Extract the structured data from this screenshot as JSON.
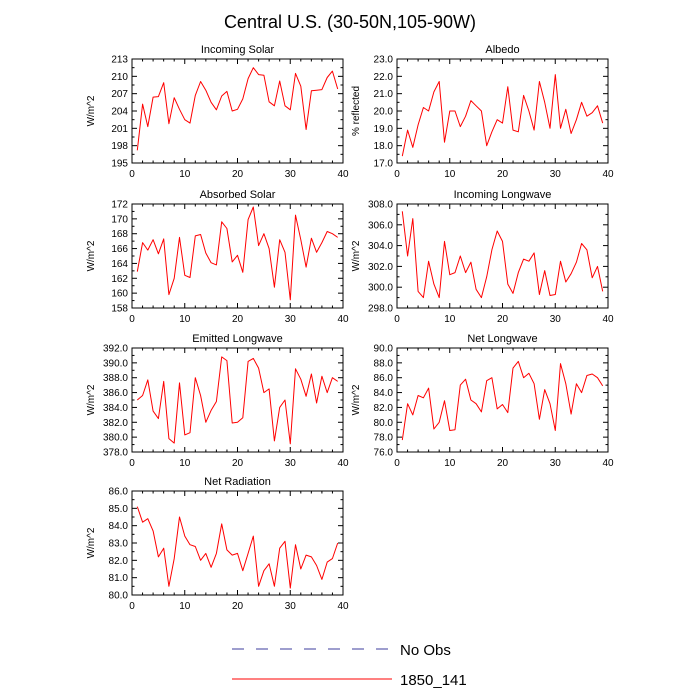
{
  "figure": {
    "title": "Central U.S. (30-50N,105-90W)"
  },
  "legend": [
    {
      "label": "No Obs",
      "color": "#3c3c9c",
      "dash": "dashed"
    },
    {
      "label": "1850_141",
      "color": "#ff0000",
      "dash": "solid"
    }
  ],
  "chart_data": [
    {
      "type": "line",
      "title": "Incoming Solar",
      "ylabel": "W/m^2",
      "xlim": [
        0,
        40
      ],
      "ylim": [
        195,
        213
      ],
      "xticks": [
        0,
        10,
        20,
        30,
        40
      ],
      "yticks": [
        195,
        198,
        201,
        204,
        207,
        210,
        213
      ],
      "ytick_labels": [
        "195",
        "198",
        "201",
        "204",
        "207",
        "210",
        "213"
      ],
      "series": [
        {
          "name": "1850_141",
          "color": "#ff0000",
          "x": [
            1,
            2,
            3,
            4,
            5,
            6,
            7,
            8,
            9,
            10,
            11,
            12,
            13,
            14,
            15,
            16,
            17,
            18,
            19,
            20,
            21,
            22,
            23,
            24,
            25,
            26,
            27,
            28,
            29,
            30,
            31,
            32,
            33,
            34,
            35,
            36,
            37,
            38,
            39
          ],
          "values": [
            197.2,
            205.2,
            201.3,
            206.4,
            206.5,
            208.9,
            201.8,
            206.3,
            204.3,
            202.5,
            201.9,
            206.7,
            209.1,
            207.6,
            205.5,
            204.2,
            206.6,
            207.4,
            204.0,
            204.3,
            206.1,
            209.6,
            211.5,
            210.3,
            210.2,
            205.6,
            204.9,
            209.2,
            204.9,
            204.2,
            210.5,
            208.3,
            200.8,
            207.5,
            207.6,
            207.7,
            209.8,
            210.9,
            207.8
          ]
        }
      ]
    },
    {
      "type": "line",
      "title": "Albedo",
      "ylabel": "% reflected",
      "xlim": [
        0,
        40
      ],
      "ylim": [
        17,
        23
      ],
      "xticks": [
        0,
        10,
        20,
        30,
        40
      ],
      "yticks": [
        17,
        18,
        19,
        20,
        21,
        22,
        23
      ],
      "ytick_labels": [
        "17.0",
        "18.0",
        "19.0",
        "20.0",
        "21.0",
        "22.0",
        "23.0"
      ],
      "series": [
        {
          "name": "1850_141",
          "color": "#ff0000",
          "x": [
            1,
            2,
            3,
            4,
            5,
            6,
            7,
            8,
            9,
            10,
            11,
            12,
            13,
            14,
            15,
            16,
            17,
            18,
            19,
            20,
            21,
            22,
            23,
            24,
            25,
            26,
            27,
            28,
            29,
            30,
            31,
            32,
            33,
            34,
            35,
            36,
            37,
            38,
            39
          ],
          "values": [
            17.4,
            18.9,
            17.9,
            19.2,
            20.2,
            20.0,
            21.1,
            21.7,
            18.2,
            20.0,
            20.0,
            19.1,
            19.7,
            20.6,
            20.3,
            20.0,
            18.0,
            18.8,
            19.5,
            19.3,
            21.4,
            18.9,
            18.8,
            20.9,
            20.0,
            18.9,
            21.7,
            20.5,
            19.0,
            22.1,
            19.0,
            20.1,
            18.7,
            19.5,
            20.5,
            19.7,
            19.9,
            20.3,
            19.3
          ]
        }
      ]
    },
    {
      "type": "line",
      "title": "Absorbed Solar",
      "ylabel": "W/m^2",
      "xlim": [
        0,
        40
      ],
      "ylim": [
        158,
        172
      ],
      "xticks": [
        0,
        10,
        20,
        30,
        40
      ],
      "yticks": [
        158,
        160,
        162,
        164,
        166,
        168,
        170,
        172
      ],
      "ytick_labels": [
        "158",
        "160",
        "162",
        "164",
        "166",
        "168",
        "170",
        "172"
      ],
      "series": [
        {
          "name": "1850_141",
          "color": "#ff0000",
          "x": [
            1,
            2,
            3,
            4,
            5,
            6,
            7,
            8,
            9,
            10,
            11,
            12,
            13,
            14,
            15,
            16,
            17,
            18,
            19,
            20,
            21,
            22,
            23,
            24,
            25,
            26,
            27,
            28,
            29,
            30,
            31,
            32,
            33,
            34,
            35,
            36,
            37,
            38,
            39
          ],
          "values": [
            162.9,
            166.8,
            165.8,
            167.2,
            165.3,
            167.3,
            159.8,
            162.0,
            167.5,
            162.4,
            162.1,
            167.7,
            167.9,
            165.4,
            164.1,
            163.8,
            169.6,
            168.7,
            164.2,
            165.1,
            162.8,
            169.9,
            171.6,
            166.4,
            168.0,
            166.0,
            160.8,
            167.2,
            165.5,
            159.1,
            170.5,
            167.2,
            163.5,
            167.4,
            165.5,
            166.8,
            168.3,
            168.0,
            167.5
          ]
        }
      ]
    },
    {
      "type": "line",
      "title": "Incoming Longwave",
      "ylabel": "W/m^2",
      "xlim": [
        0,
        40
      ],
      "ylim": [
        298,
        308
      ],
      "xticks": [
        0,
        10,
        20,
        30,
        40
      ],
      "yticks": [
        298,
        300,
        302,
        304,
        306,
        308
      ],
      "ytick_labels": [
        "298.0",
        "300.0",
        "302.0",
        "304.0",
        "306.0",
        "308.0"
      ],
      "series": [
        {
          "name": "1850_141",
          "color": "#ff0000",
          "x": [
            1,
            2,
            3,
            4,
            5,
            6,
            7,
            8,
            9,
            10,
            11,
            12,
            13,
            14,
            15,
            16,
            17,
            18,
            19,
            20,
            21,
            22,
            23,
            24,
            25,
            26,
            27,
            28,
            29,
            30,
            31,
            32,
            33,
            34,
            35,
            36,
            37,
            38,
            39
          ],
          "values": [
            307.3,
            303.0,
            306.6,
            299.6,
            299.0,
            302.5,
            300.3,
            299.0,
            304.4,
            301.2,
            301.4,
            303.0,
            301.4,
            302.4,
            299.8,
            299.0,
            301.0,
            303.6,
            305.4,
            304.4,
            300.3,
            299.4,
            301.4,
            302.7,
            302.5,
            303.3,
            299.3,
            301.6,
            299.2,
            299.3,
            302.5,
            300.5,
            301.3,
            302.4,
            304.2,
            303.6,
            300.9,
            302.0,
            299.6
          ]
        }
      ]
    },
    {
      "type": "line",
      "title": "Emitted Longwave",
      "ylabel": "W/m^2",
      "xlim": [
        0,
        40
      ],
      "ylim": [
        378,
        392
      ],
      "xticks": [
        0,
        10,
        20,
        30,
        40
      ],
      "yticks": [
        378,
        380,
        382,
        384,
        386,
        388,
        390,
        392
      ],
      "ytick_labels": [
        "378.0",
        "380.0",
        "382.0",
        "384.0",
        "386.0",
        "388.0",
        "390.0",
        "392.0"
      ],
      "series": [
        {
          "name": "1850_141",
          "color": "#ff0000",
          "x": [
            1,
            2,
            3,
            4,
            5,
            6,
            7,
            8,
            9,
            10,
            11,
            12,
            13,
            14,
            15,
            16,
            17,
            18,
            19,
            20,
            21,
            22,
            23,
            24,
            25,
            26,
            27,
            28,
            29,
            30,
            31,
            32,
            33,
            34,
            35,
            36,
            37,
            38,
            39
          ],
          "values": [
            385.0,
            385.6,
            387.7,
            383.5,
            382.5,
            387.5,
            379.8,
            379.2,
            387.3,
            380.3,
            380.6,
            388.0,
            385.6,
            382.0,
            383.6,
            384.8,
            390.8,
            390.3,
            381.9,
            382.0,
            382.6,
            390.2,
            390.6,
            389.3,
            386.0,
            386.5,
            379.5,
            384.0,
            385.0,
            379.1,
            389.2,
            387.8,
            385.5,
            388.5,
            384.6,
            388.2,
            386.0,
            388.0,
            387.5
          ]
        }
      ]
    },
    {
      "type": "line",
      "title": "Net Longwave",
      "ylabel": "W/m^2",
      "xlim": [
        0,
        40
      ],
      "ylim": [
        76,
        90
      ],
      "xticks": [
        0,
        10,
        20,
        30,
        40
      ],
      "yticks": [
        76,
        78,
        80,
        82,
        84,
        86,
        88,
        90
      ],
      "ytick_labels": [
        "76.0",
        "78.0",
        "80.0",
        "82.0",
        "84.0",
        "86.0",
        "88.0",
        "90.0"
      ],
      "series": [
        {
          "name": "1850_141",
          "color": "#ff0000",
          "x": [
            1,
            2,
            3,
            4,
            5,
            6,
            7,
            8,
            9,
            10,
            11,
            12,
            13,
            14,
            15,
            16,
            17,
            18,
            19,
            20,
            21,
            22,
            23,
            24,
            25,
            26,
            27,
            28,
            29,
            30,
            31,
            32,
            33,
            34,
            35,
            36,
            37,
            38,
            39
          ],
          "values": [
            77.6,
            82.5,
            81.0,
            83.6,
            83.3,
            84.6,
            79.1,
            80.0,
            82.9,
            78.9,
            79.0,
            85.0,
            85.8,
            83.0,
            82.5,
            81.4,
            85.6,
            86.0,
            81.8,
            82.4,
            81.3,
            87.3,
            88.2,
            86.0,
            86.6,
            85.2,
            80.4,
            84.4,
            82.5,
            78.9,
            87.9,
            85.2,
            81.1,
            85.2,
            84.0,
            86.3,
            86.5,
            86.0,
            84.9
          ]
        }
      ]
    },
    {
      "type": "line",
      "title": "Net Radiation",
      "ylabel": "W/m^2",
      "xlim": [
        0,
        40
      ],
      "ylim": [
        80,
        86
      ],
      "xticks": [
        0,
        10,
        20,
        30,
        40
      ],
      "yticks": [
        80,
        81,
        82,
        83,
        84,
        85,
        86
      ],
      "ytick_labels": [
        "80.0",
        "81.0",
        "82.0",
        "83.0",
        "84.0",
        "85.0",
        "86.0"
      ],
      "series": [
        {
          "name": "1850_141",
          "color": "#ff0000",
          "x": [
            1,
            2,
            3,
            4,
            5,
            6,
            7,
            8,
            9,
            10,
            11,
            12,
            13,
            14,
            15,
            16,
            17,
            18,
            19,
            20,
            21,
            22,
            23,
            24,
            25,
            26,
            27,
            28,
            29,
            30,
            31,
            32,
            33,
            34,
            35,
            36,
            37,
            38,
            39
          ],
          "values": [
            85.1,
            84.2,
            84.4,
            83.7,
            82.2,
            82.7,
            80.5,
            82.1,
            84.5,
            83.4,
            82.9,
            82.8,
            82.0,
            82.4,
            81.6,
            82.4,
            84.1,
            82.6,
            82.3,
            82.4,
            81.4,
            82.4,
            83.4,
            80.5,
            81.4,
            81.8,
            80.5,
            82.7,
            83.1,
            80.4,
            82.9,
            81.5,
            82.3,
            82.2,
            81.7,
            80.9,
            81.9,
            82.1,
            83.0
          ]
        }
      ]
    }
  ]
}
